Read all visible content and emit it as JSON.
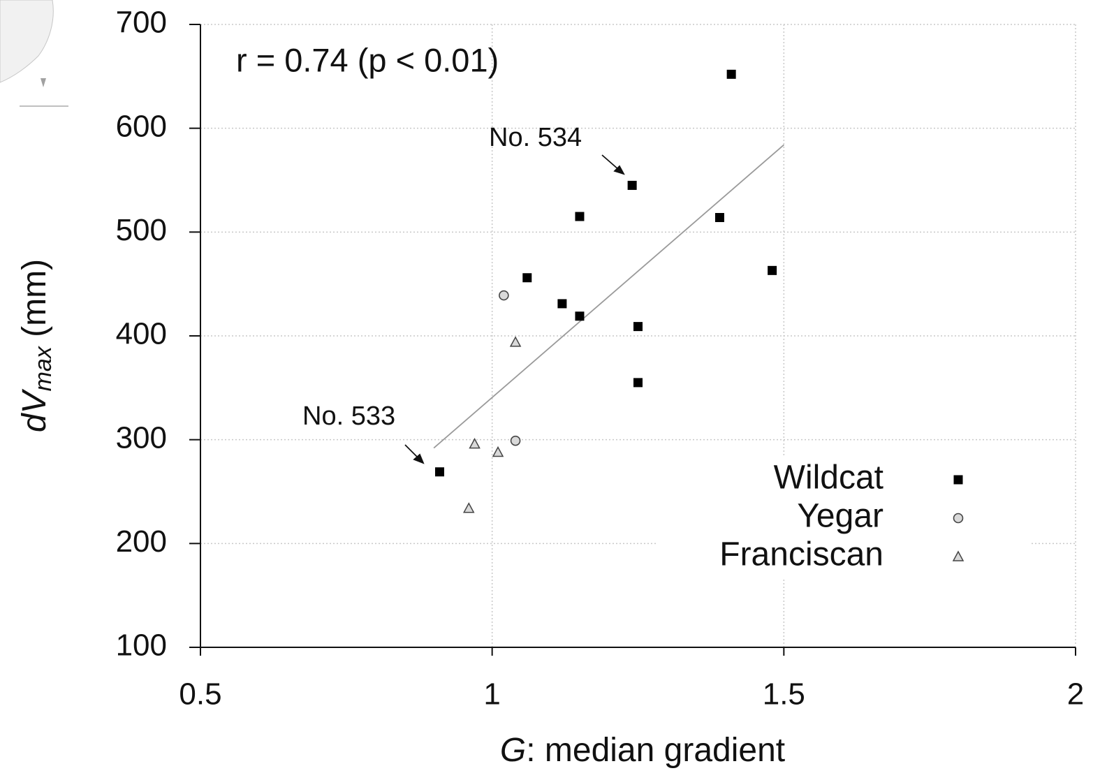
{
  "chart_data": {
    "type": "scatter",
    "annotations": [
      "r = 0.74 (p < 0.01)",
      "No. 534",
      "No. 533"
    ],
    "xlabel_parts": [
      "G",
      ": median gradient"
    ],
    "ylabel_parts": [
      "dV",
      "max",
      " (mm)"
    ],
    "xlim": [
      0.5,
      2
    ],
    "xticks": [
      0.5,
      1,
      1.5,
      2
    ],
    "ylim": [
      100,
      700
    ],
    "yticks": [
      100,
      200,
      300,
      400,
      500,
      600,
      700
    ],
    "grid": true,
    "legend": "lower right",
    "series": [
      {
        "name": "Wildcat",
        "color": "#000000",
        "marker": "square",
        "x": [
          1.41,
          1.24,
          1.15,
          1.39,
          1.48,
          1.06,
          1.12,
          1.15,
          1.25,
          1.25,
          0.91
        ],
        "values": [
          652,
          545,
          515,
          514,
          463,
          456,
          431,
          419,
          409,
          355,
          269
        ]
      },
      {
        "name": "Yegar",
        "color": "#d9d9d9",
        "marker": "circle",
        "x": [
          1.02,
          1.04
        ],
        "values": [
          439,
          299
        ]
      },
      {
        "name": "Franciscan",
        "color": "#d9d9d9",
        "marker": "triangle",
        "x": [
          1.04,
          0.97,
          1.01,
          0.96
        ],
        "values": [
          394,
          296,
          288,
          234
        ]
      }
    ],
    "trendline": {
      "color": "#9a9a9a",
      "x": [
        0.9,
        1.5
      ],
      "values": [
        292,
        584
      ]
    }
  }
}
